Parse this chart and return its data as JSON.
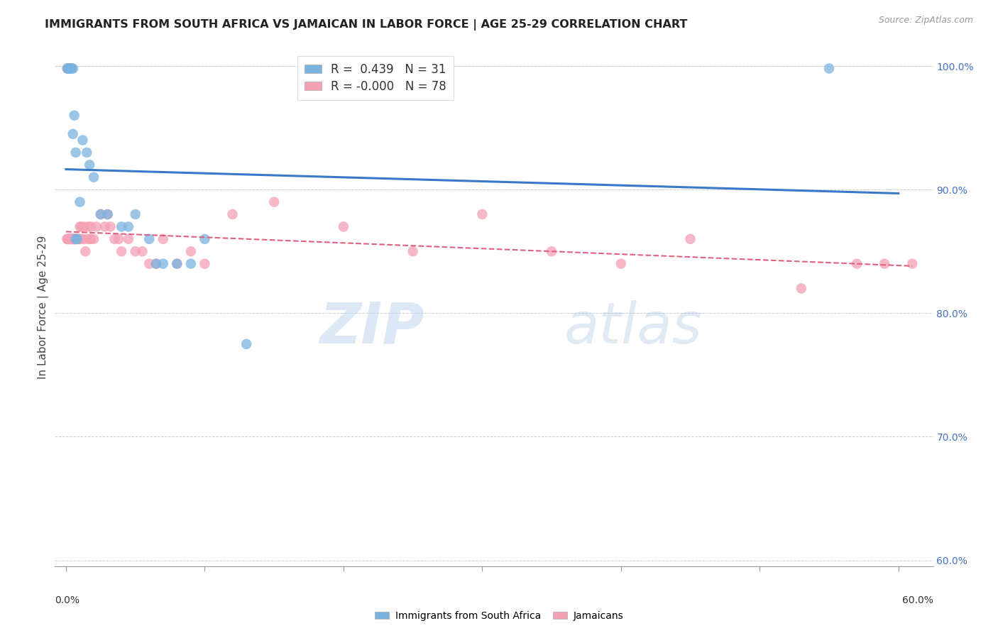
{
  "title": "IMMIGRANTS FROM SOUTH AFRICA VS JAMAICAN IN LABOR FORCE | AGE 25-29 CORRELATION CHART",
  "source": "Source: ZipAtlas.com",
  "ylabel": "In Labor Force | Age 25-29",
  "ylim": [
    0.595,
    1.015
  ],
  "xlim": [
    -0.008,
    0.625
  ],
  "yticks": [
    0.6,
    0.7,
    0.8,
    0.9,
    1.0
  ],
  "ytick_labels": [
    "60.0%",
    "70.0%",
    "80.0%",
    "90.0%",
    "100.0%"
  ],
  "xtick_positions": [
    0.0,
    0.1,
    0.2,
    0.3,
    0.4,
    0.5,
    0.6
  ],
  "legend_R_blue": "0.439",
  "legend_N_blue": "31",
  "legend_R_pink": "-0.000",
  "legend_N_pink": "78",
  "blue_scatter_color": "#7ab3e0",
  "pink_scatter_color": "#f4a0b5",
  "blue_line_color": "#3a78c9",
  "pink_line_color": "#e06080",
  "background_color": "#ffffff",
  "watermark_zip": "ZIP",
  "watermark_atlas": "atlas",
  "south_africa_x": [
    0.001,
    0.002,
    0.003,
    0.004,
    0.005,
    0.006,
    0.006,
    0.007,
    0.007,
    0.008,
    0.008,
    0.009,
    0.01,
    0.012,
    0.015,
    0.018,
    0.02,
    0.025,
    0.03,
    0.035,
    0.04,
    0.05,
    0.055,
    0.06,
    0.065,
    0.07,
    0.08,
    0.09,
    0.1,
    0.15,
    0.55
  ],
  "south_africa_y": [
    0.86,
    0.86,
    1.0,
    1.0,
    1.0,
    1.0,
    1.0,
    1.0,
    0.998,
    0.998,
    0.86,
    0.86,
    0.87,
    0.94,
    0.93,
    0.9,
    0.92,
    0.87,
    0.88,
    0.89,
    0.96,
    0.87,
    0.88,
    0.87,
    0.84,
    0.84,
    0.83,
    0.82,
    0.87,
    0.78,
    1.0
  ],
  "jamaican_x": [
    0.001,
    0.001,
    0.001,
    0.002,
    0.002,
    0.002,
    0.003,
    0.003,
    0.003,
    0.003,
    0.004,
    0.004,
    0.004,
    0.005,
    0.005,
    0.005,
    0.006,
    0.006,
    0.006,
    0.007,
    0.007,
    0.008,
    0.008,
    0.009,
    0.009,
    0.01,
    0.01,
    0.01,
    0.012,
    0.013,
    0.013,
    0.014,
    0.015,
    0.016,
    0.016,
    0.017,
    0.018,
    0.018,
    0.019,
    0.02,
    0.022,
    0.023,
    0.025,
    0.027,
    0.028,
    0.03,
    0.032,
    0.035,
    0.038,
    0.04,
    0.042,
    0.045,
    0.05,
    0.055,
    0.06,
    0.065,
    0.07,
    0.08,
    0.09,
    0.1,
    0.11,
    0.12,
    0.14,
    0.15,
    0.18,
    0.2,
    0.22,
    0.25,
    0.28,
    0.3,
    0.32,
    0.38,
    0.42,
    0.45,
    0.52,
    0.54,
    0.58,
    0.61
  ],
  "jamaican_y": [
    0.86,
    0.86,
    0.86,
    0.86,
    0.86,
    0.86,
    0.86,
    0.86,
    0.86,
    0.86,
    0.86,
    0.86,
    0.86,
    1.0,
    0.998,
    0.86,
    0.86,
    0.86,
    0.86,
    0.86,
    0.86,
    0.86,
    0.87,
    0.87,
    0.87,
    0.87,
    0.87,
    0.88,
    0.87,
    0.87,
    0.85,
    0.86,
    0.86,
    0.88,
    0.86,
    0.87,
    0.85,
    0.87,
    0.85,
    0.86,
    0.87,
    0.88,
    0.88,
    0.86,
    0.87,
    0.87,
    0.87,
    0.85,
    0.86,
    0.86,
    0.84,
    0.84,
    0.84,
    0.86,
    0.84,
    0.86,
    0.86,
    0.83,
    0.82,
    0.84,
    0.86,
    0.87,
    0.86,
    0.88,
    0.88,
    0.88,
    0.86,
    0.84,
    0.87,
    0.86,
    0.86,
    0.86,
    0.84,
    0.84,
    0.84,
    0.86,
    0.84,
    0.84
  ]
}
